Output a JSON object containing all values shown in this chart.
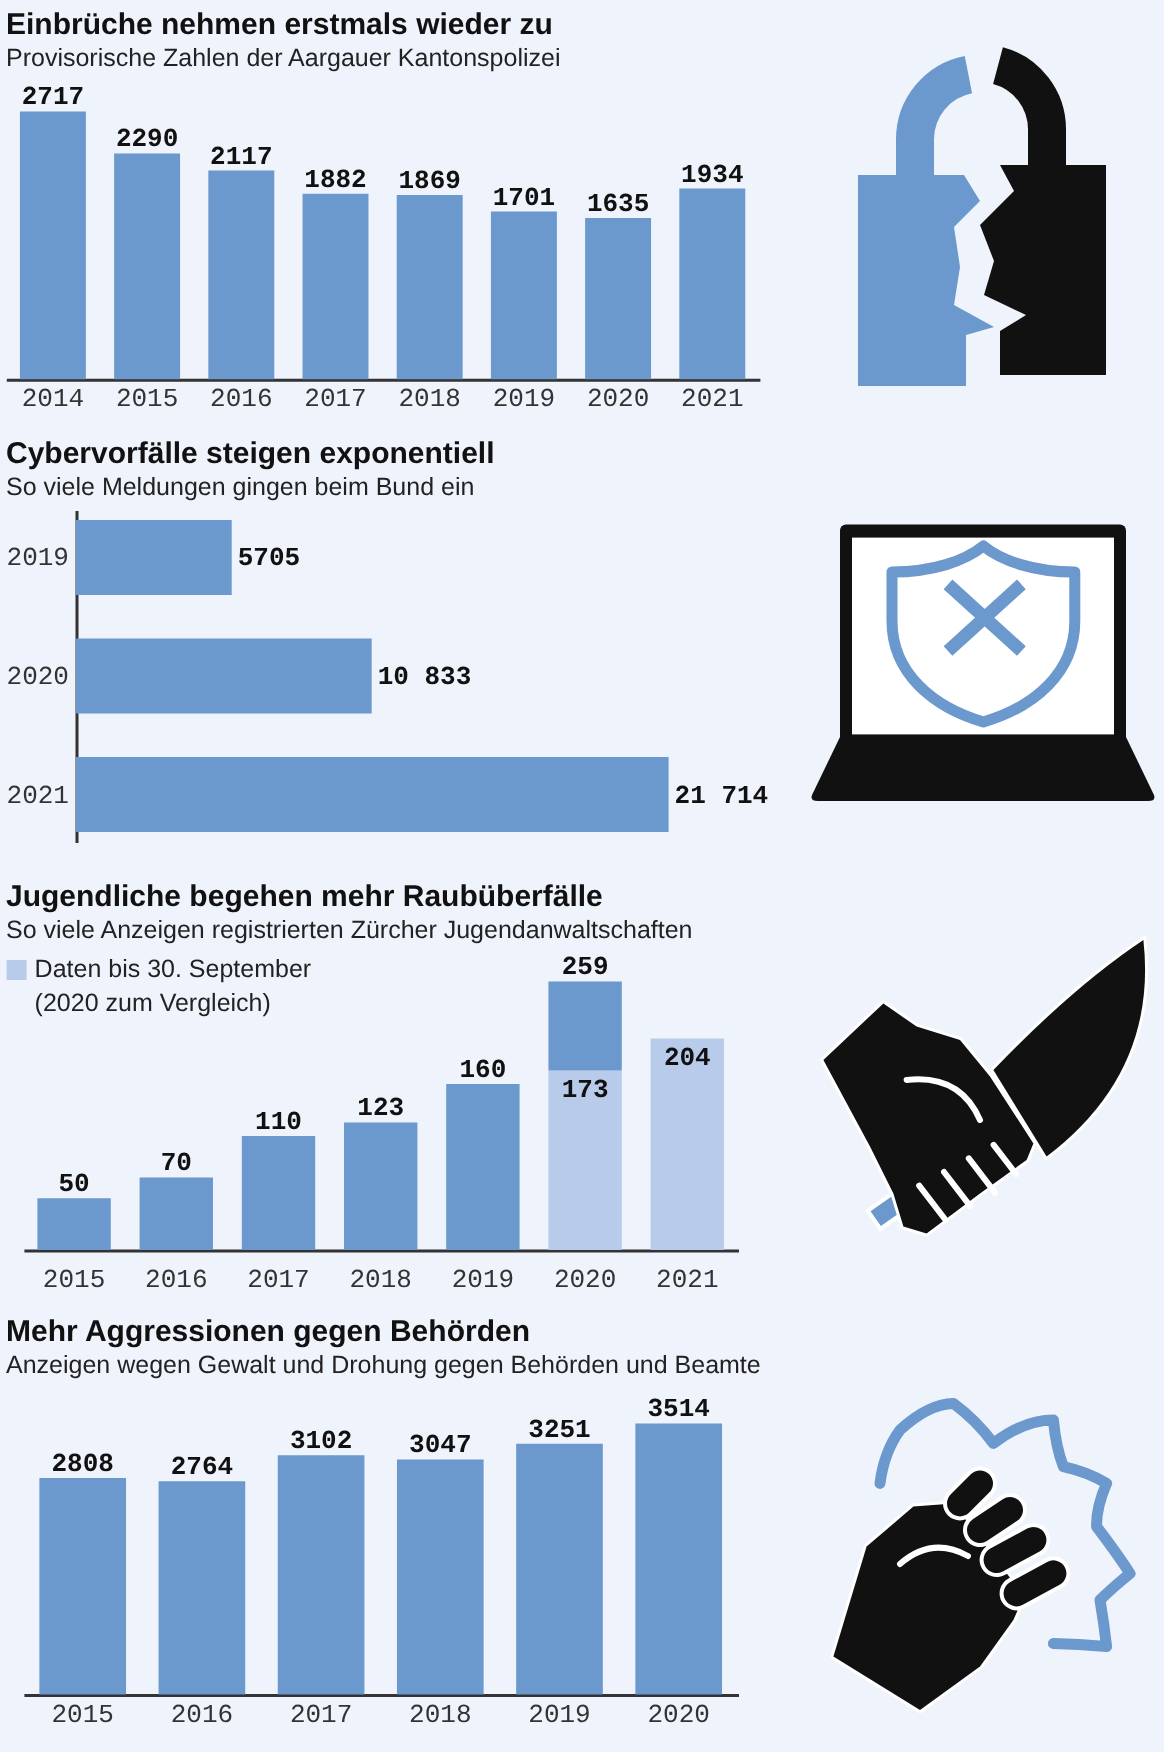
{
  "chart_data": [
    {
      "type": "bar",
      "title": "Einbrüche nehmen erstmals wieder zu",
      "subtitle": "Provisorische Zahlen der Aargauer Kantonspolizei",
      "categories": [
        "2014",
        "2015",
        "2016",
        "2017",
        "2018",
        "2019",
        "2020",
        "2021"
      ],
      "values": [
        2717,
        2290,
        2117,
        1882,
        1869,
        1701,
        1635,
        1934
      ],
      "color": "#6b98cd",
      "data_labels": true
    },
    {
      "type": "bar",
      "orientation": "horizontal",
      "title": "Cybervorfälle steigen exponentiell",
      "subtitle": "So viele Meldungen gingen beim Bund ein",
      "categories": [
        "2019",
        "2020",
        "2021"
      ],
      "values": [
        5705,
        10833,
        21714
      ],
      "color": "#6b98cd",
      "value_labels": [
        "5705",
        "10 833",
        "21 714"
      ]
    },
    {
      "type": "bar",
      "stacked": true,
      "title": "Jugendliche begehen mehr Raubüberfälle",
      "subtitle": "So viele Anzeigen registrierten Zürcher Jugendanwaltschaften",
      "categories": [
        "2015",
        "2016",
        "2017",
        "2018",
        "2019",
        "2020",
        "2021"
      ],
      "series": [
        {
          "name": "Daten bis 30. September (2020 zum Vergleich)",
          "color": "#b9cbea",
          "values": [
            null,
            null,
            null,
            null,
            null,
            173,
            204
          ],
          "value_labels": [
            null,
            null,
            null,
            null,
            null,
            "173",
            "204"
          ]
        },
        {
          "color": "#6b98cd",
          "values": [
            50,
            70,
            110,
            123,
            160,
            86,
            null
          ]
        }
      ],
      "totals": [
        "50",
        "70",
        "110",
        "123",
        "160",
        "259",
        null
      ],
      "legend": "top left"
    },
    {
      "type": "bar",
      "title": "Mehr Aggressionen gegen Behörden",
      "subtitle": "Anzeigen wegen Gewalt und Drohung gegen Behörden und Beamte",
      "categories": [
        "2015",
        "2016",
        "2017",
        "2018",
        "2019",
        "2020"
      ],
      "values": [
        2808,
        2764,
        3102,
        3047,
        3251,
        3514
      ],
      "color": "#6b98cd",
      "data_labels": true
    }
  ]
}
